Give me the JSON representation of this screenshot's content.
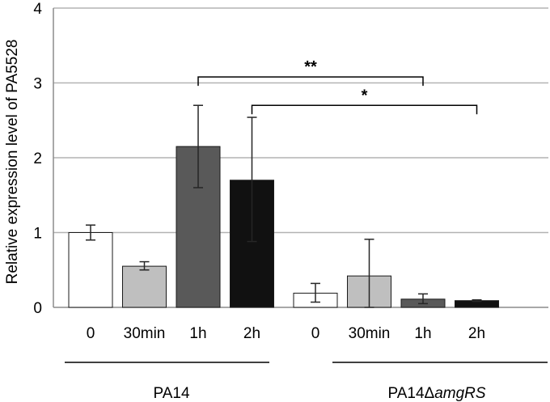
{
  "chart_data": {
    "type": "bar",
    "ylabel": "Relative expression level of PA5528",
    "ylim": [
      0,
      4
    ],
    "yticks": [
      "0",
      "1",
      "2",
      "3",
      "4"
    ],
    "grid": true,
    "groups": [
      {
        "label": "PA14",
        "label_italic_suffix": "",
        "bars": [
          {
            "category": "0",
            "value": 1.0,
            "err_low": 0.9,
            "err_high": 1.1,
            "color": "#ffffff"
          },
          {
            "category": "30min",
            "value": 0.55,
            "err_low": 0.5,
            "err_high": 0.61,
            "color": "#bfbfbf"
          },
          {
            "category": "1h",
            "value": 2.15,
            "err_low": 1.6,
            "err_high": 2.7,
            "color": "#595959"
          },
          {
            "category": "2h",
            "value": 1.7,
            "err_low": 0.88,
            "err_high": 2.54,
            "color": "#111111"
          }
        ]
      },
      {
        "label": "PA14Δ",
        "label_italic_suffix": "amgRS",
        "bars": [
          {
            "category": "0",
            "value": 0.19,
            "err_low": 0.07,
            "err_high": 0.32,
            "color": "#ffffff"
          },
          {
            "category": "30min",
            "value": 0.42,
            "err_low": 0.0,
            "err_high": 0.91,
            "color": "#bfbfbf"
          },
          {
            "category": "1h",
            "value": 0.11,
            "err_low": 0.05,
            "err_high": 0.18,
            "color": "#595959"
          },
          {
            "category": "2h",
            "value": 0.09,
            "err_low": 0.08,
            "err_high": 0.1,
            "color": "#111111"
          }
        ]
      }
    ],
    "significance": [
      {
        "label": "**",
        "from": [
          0,
          2
        ],
        "to": [
          1,
          2
        ],
        "y": 3.08
      },
      {
        "label": "*",
        "from": [
          0,
          3
        ],
        "to": [
          1,
          3
        ],
        "y": 2.7
      }
    ]
  }
}
